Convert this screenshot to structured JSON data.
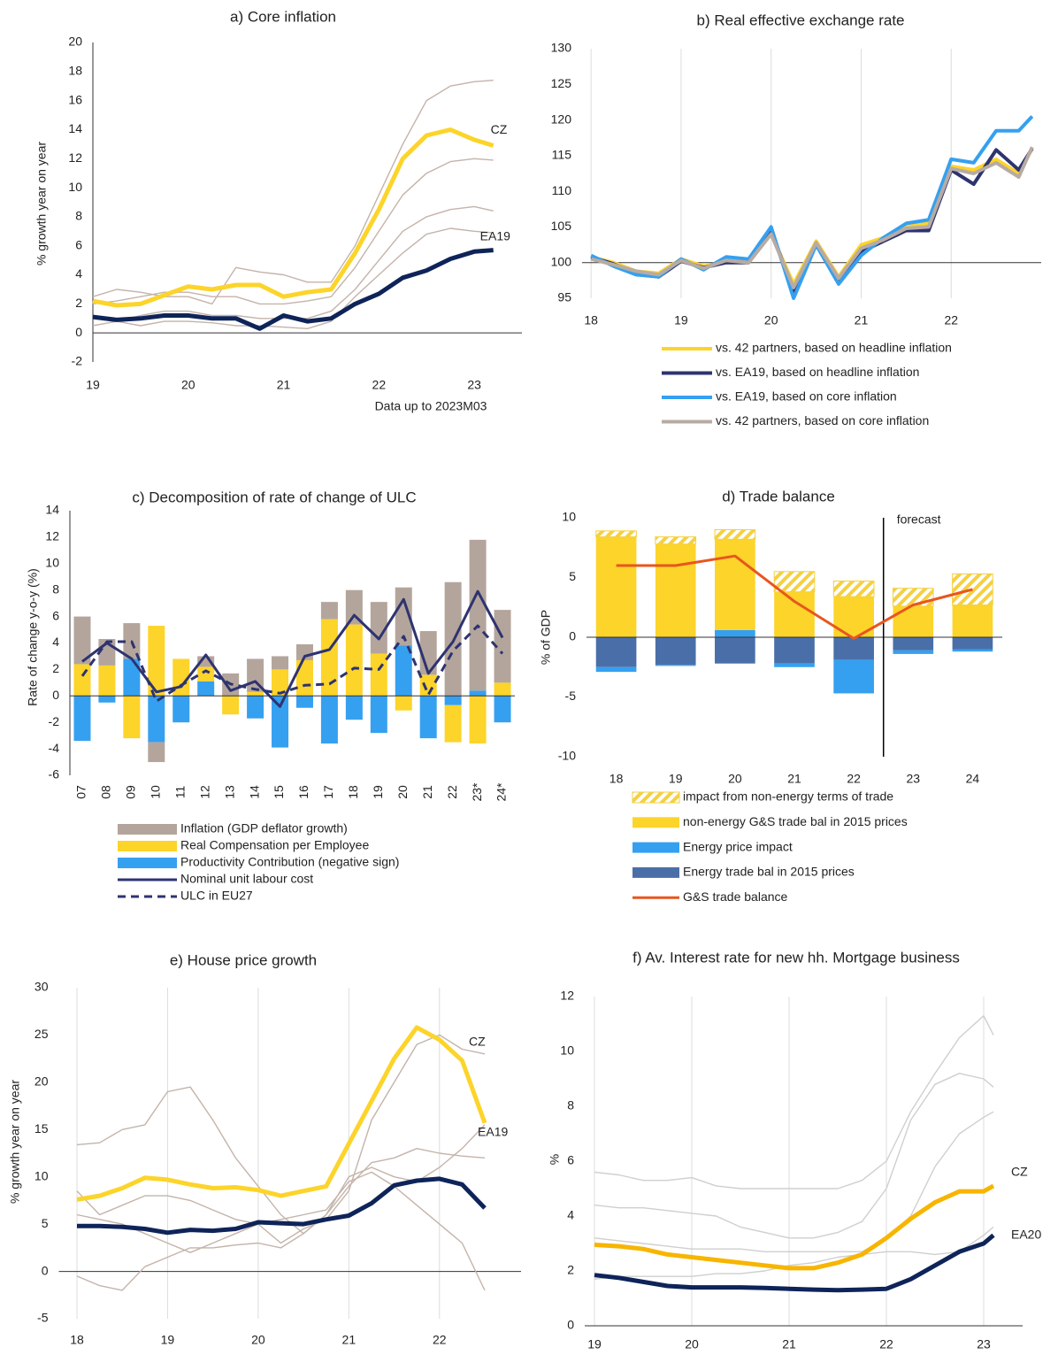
{
  "chart_data": [
    {
      "type": "line",
      "title": "a) Core inflation",
      "y_label": "% growth year on year",
      "note": "Data up to 2023M03",
      "x": [
        19,
        19.25,
        19.5,
        19.75,
        20,
        20.25,
        20.5,
        20.75,
        21,
        21.25,
        21.5,
        21.75,
        22,
        22.25,
        22.5,
        22.75,
        23,
        23.2
      ],
      "xlim": [
        19,
        23.5
      ],
      "xticks": [
        19,
        20,
        21,
        22,
        23
      ],
      "ylim": [
        -2,
        20
      ],
      "yticks": [
        -2,
        0,
        2,
        4,
        6,
        8,
        10,
        12,
        14,
        16,
        18,
        20
      ],
      "xaxis_at": 0,
      "y_axis_line": true,
      "series": [
        {
          "color": "#c4b3aa",
          "values": [
            2.5,
            3.0,
            2.8,
            2.5,
            2.5,
            2.0,
            4.5,
            4.2,
            4.0,
            3.5,
            3.5,
            6.0,
            9.5,
            13.0,
            16.0,
            17.0,
            17.3,
            17.4
          ]
        },
        {
          "color": "#c4b3aa",
          "values": [
            2.0,
            2.2,
            2.5,
            2.8,
            2.8,
            2.5,
            2.5,
            2.0,
            2.0,
            2.2,
            2.5,
            4.5,
            7.0,
            9.5,
            11.0,
            11.8,
            12.0,
            11.9
          ]
        },
        {
          "color": "#c4b3aa",
          "values": [
            1.0,
            0.8,
            1.2,
            1.5,
            1.5,
            1.2,
            1.2,
            1.0,
            1.0,
            1.0,
            1.5,
            3.0,
            5.0,
            7.0,
            8.0,
            8.5,
            8.7,
            8.4
          ]
        },
        {
          "color": "#c4b3aa",
          "values": [
            0.5,
            0.8,
            0.5,
            0.8,
            0.8,
            0.7,
            0.5,
            0.5,
            0.4,
            0.3,
            0.8,
            2.5,
            4.0,
            5.5,
            6.8,
            7.2,
            7.0,
            6.9
          ]
        },
        {
          "name": "CZ",
          "color": "#fcd42a",
          "values": [
            2.2,
            1.9,
            2.0,
            2.6,
            3.2,
            3.0,
            3.3,
            3.3,
            2.5,
            2.8,
            3.0,
            5.5,
            8.5,
            12.0,
            13.6,
            14.0,
            13.3,
            12.9
          ]
        },
        {
          "name": "EA19",
          "color": "#0e2459",
          "values": [
            1.1,
            0.9,
            1.0,
            1.2,
            1.2,
            1.0,
            1.0,
            0.3,
            1.2,
            0.8,
            1.0,
            2.0,
            2.7,
            3.8,
            4.3,
            5.1,
            5.6,
            5.7
          ]
        }
      ]
    },
    {
      "type": "line",
      "title": "b) Real effective exchange rate",
      "x": [
        18,
        18.25,
        18.5,
        18.75,
        19,
        19.25,
        19.5,
        19.75,
        20,
        20.25,
        20.5,
        20.75,
        21,
        21.25,
        21.5,
        21.75,
        22,
        22.25,
        22.5,
        22.75,
        22.9
      ],
      "xlim": [
        17.9,
        23.0
      ],
      "xticks": [
        18,
        19,
        20,
        21,
        22
      ],
      "ylim": [
        95,
        130
      ],
      "yticks": [
        95,
        100,
        105,
        110,
        115,
        120,
        125,
        130
      ],
      "xaxis_at": 100,
      "grid": "x",
      "legend": "bottom",
      "series": [
        {
          "name": "vs. 42 partners, based on headline inflation",
          "color": "#fcd42a",
          "values": [
            100.8,
            100.0,
            98.8,
            98.5,
            100.5,
            99.5,
            100.0,
            100.2,
            104.0,
            97.0,
            103.0,
            98.0,
            102.5,
            103.5,
            105.0,
            105.5,
            113.5,
            113.0,
            114.5,
            112.5,
            116.0
          ]
        },
        {
          "name": "vs. EA19, based on headline inflation",
          "color": "#2e3370",
          "values": [
            100.8,
            99.8,
            98.5,
            98.0,
            100.2,
            99.3,
            100.0,
            100.0,
            104.5,
            96.0,
            102.5,
            97.5,
            101.5,
            103.0,
            104.5,
            104.5,
            113.0,
            111.0,
            115.8,
            113.0,
            116.0
          ]
        },
        {
          "name": "vs. EA19, based on core inflation",
          "color": "#35a0f0",
          "values": [
            101.0,
            99.5,
            98.3,
            98.0,
            100.5,
            99.0,
            100.8,
            100.5,
            105.0,
            95.0,
            102.5,
            97.0,
            101.0,
            103.5,
            105.5,
            106.0,
            114.5,
            114.0,
            118.5,
            118.5,
            120.5
          ]
        },
        {
          "name": "vs. 42 partners, based on core inflation",
          "color": "#b8aba3",
          "values": [
            100.5,
            99.7,
            98.8,
            98.3,
            100.3,
            99.2,
            100.3,
            100.0,
            104.0,
            96.5,
            102.8,
            97.8,
            102.0,
            103.2,
            104.8,
            105.0,
            113.2,
            112.5,
            114.0,
            112.0,
            116.2
          ]
        }
      ]
    },
    {
      "type": "bar",
      "title": "c) Decomposition of rate of change of ULC",
      "y_label": "Rate of change y-o-y (%)",
      "categories": [
        "07",
        "08",
        "09",
        "10",
        "11",
        "12",
        "13",
        "14",
        "15",
        "16",
        "17",
        "18",
        "19",
        "20",
        "21",
        "22",
        "23*",
        "24*"
      ],
      "ylim": [
        -6,
        14
      ],
      "yticks": [
        -6,
        -4,
        -2,
        0,
        2,
        4,
        6,
        8,
        10,
        12,
        14
      ],
      "xaxis_at": 0,
      "y_axis_line": true,
      "legend": "bottom",
      "stacked": true,
      "series": [
        {
          "name": "Inflation (GDP deflator growth)",
          "color": "#b4a59c",
          "values": [
            3.6,
            2.0,
            2.7,
            -1.5,
            0,
            0.8,
            1.7,
            2.5,
            1.0,
            1.2,
            1.3,
            2.6,
            3.9,
            4.4,
            3.3,
            8.6,
            11.4,
            5.5
          ]
        },
        {
          "name": "Real Compensation per Employee",
          "color": "#fcd42a",
          "values": [
            2.4,
            2.3,
            -3.2,
            5.3,
            2.8,
            1.1,
            -1.4,
            0.3,
            2.0,
            2.7,
            5.8,
            5.4,
            3.2,
            -1.1,
            1.6,
            -2.8,
            -3.6,
            1.0
          ]
        },
        {
          "name": "Productivity Contribution (negative sign)",
          "color": "#35a0f0",
          "values": [
            -3.4,
            -0.5,
            2.8,
            -3.5,
            -2.0,
            1.1,
            0,
            -1.7,
            -3.9,
            -0.9,
            -3.6,
            -1.8,
            -2.8,
            3.8,
            -3.2,
            -0.7,
            0.4,
            -2.0
          ]
        },
        {
          "name": "Nominal unit labour cost",
          "color": "#2e3370",
          "type": "line",
          "values": [
            2.6,
            4.0,
            2.8,
            0.3,
            0.7,
            3.1,
            0.4,
            1.1,
            -0.8,
            3.0,
            3.5,
            6.1,
            4.3,
            7.3,
            1.7,
            4.1,
            7.9,
            4.4
          ]
        },
        {
          "name": "ULC in EU27",
          "color": "#2e3370",
          "type": "line",
          "dash": true,
          "values": [
            1.5,
            4.1,
            4.1,
            -0.4,
            0.8,
            1.9,
            0.9,
            0.5,
            0.2,
            0.8,
            0.9,
            2.1,
            2.0,
            4.5,
            0.1,
            3.4,
            5.3,
            3.2
          ]
        }
      ]
    },
    {
      "type": "bar",
      "title": "d) Trade balance",
      "y_label": "% of GDP",
      "annotation": "forecast",
      "categories": [
        "18",
        "19",
        "20",
        "21",
        "22",
        "23",
        "24"
      ],
      "ylim": [
        -10,
        10
      ],
      "yticks": [
        -10,
        -5,
        0,
        5,
        10
      ],
      "xaxis_at": 0,
      "legend": "bottom",
      "stacked": true,
      "series": [
        {
          "name": "impact from non-energy terms of trade",
          "color": "#f5d040",
          "pattern": "hatch",
          "values": [
            0.5,
            0.6,
            0.8,
            1.7,
            1.3,
            1.5,
            2.6
          ]
        },
        {
          "name": "non-energy G&S trade bal in 2015 prices",
          "color": "#fcd42a",
          "values": [
            8.4,
            7.8,
            7.6,
            3.8,
            3.4,
            2.6,
            2.7
          ]
        },
        {
          "name": "Energy price impact",
          "color": "#35a0f0",
          "values": [
            -0.4,
            -0.1,
            0.6,
            -0.3,
            -2.8,
            -0.3,
            -0.2
          ]
        },
        {
          "name": "Energy trade bal in 2015 prices",
          "color": "#4a6fa8",
          "values": [
            -2.5,
            -2.3,
            -2.2,
            -2.2,
            -1.9,
            -1.1,
            -1.0
          ]
        },
        {
          "name": "G&S trade balance",
          "color": "#e8561e",
          "type": "line",
          "values": [
            6.0,
            6.0,
            6.8,
            3.0,
            -0.1,
            2.7,
            4.0
          ]
        }
      ]
    },
    {
      "type": "line",
      "title": "e) House price growth",
      "y_label": "% growth year on year",
      "x": [
        18,
        18.25,
        18.5,
        18.75,
        19,
        19.25,
        19.5,
        19.75,
        20,
        20.25,
        20.5,
        20.75,
        21,
        21.25,
        21.5,
        21.75,
        22,
        22.25,
        22.5
      ],
      "xlim": [
        17.8,
        22.9
      ],
      "xticks": [
        18,
        19,
        20,
        21,
        22
      ],
      "ylim": [
        -5,
        30
      ],
      "yticks": [
        -5,
        0,
        5,
        10,
        15,
        20,
        25,
        30
      ],
      "xaxis_at": 0,
      "grid": "x",
      "series": [
        {
          "color": "#c4b3aa",
          "values": [
            13.4,
            13.6,
            15.0,
            15.5,
            19.0,
            19.5,
            16.0,
            12.0,
            9.0,
            6.0,
            4.0,
            6.0,
            10.0,
            11.0,
            10.0,
            9.5,
            11.0,
            13.0,
            15.5
          ]
        },
        {
          "color": "#c4b3aa",
          "values": [
            8.5,
            6.0,
            7.0,
            8.0,
            8.0,
            7.5,
            6.5,
            5.5,
            5.0,
            3.0,
            4.5,
            5.5,
            8.5,
            16.0,
            20.0,
            24.0,
            25.0,
            23.5,
            23.0
          ]
        },
        {
          "color": "#c4b3aa",
          "values": [
            6.0,
            5.5,
            5.0,
            4.0,
            3.0,
            2.0,
            3.0,
            4.0,
            5.0,
            5.5,
            6.0,
            6.5,
            9.5,
            10.5,
            9.0,
            7.0,
            5.0,
            3.0,
            -2.0
          ]
        },
        {
          "color": "#c4b3aa",
          "values": [
            -0.5,
            -1.5,
            -2.0,
            0.5,
            1.5,
            2.5,
            2.5,
            2.8,
            3.0,
            2.5,
            4.0,
            6.0,
            9.0,
            11.5,
            12.0,
            13.0,
            12.5,
            12.2,
            12.0
          ]
        },
        {
          "name": "CZ",
          "color": "#fcd42a",
          "values": [
            7.6,
            8.0,
            8.8,
            9.9,
            9.7,
            9.2,
            8.8,
            8.9,
            8.6,
            8.0,
            8.5,
            9.0,
            13.5,
            18.0,
            22.5,
            25.8,
            24.5,
            22.3,
            15.7
          ]
        },
        {
          "name": "EA19",
          "color": "#0e2459",
          "values": [
            4.8,
            4.8,
            4.7,
            4.5,
            4.1,
            4.4,
            4.3,
            4.5,
            5.2,
            5.1,
            5.0,
            5.5,
            5.9,
            7.2,
            9.1,
            9.6,
            9.8,
            9.2,
            6.7
          ]
        }
      ]
    },
    {
      "type": "line",
      "title": "f) Av. Interest rate for new hh. Mortgage business",
      "y_label": "%",
      "x": [
        19,
        19.25,
        19.5,
        19.75,
        20,
        20.25,
        20.5,
        20.75,
        21,
        21.25,
        21.5,
        21.75,
        22,
        22.25,
        22.5,
        22.75,
        23,
        23.1
      ],
      "xlim": [
        18.9,
        23.4
      ],
      "xticks": [
        19,
        20,
        21,
        22,
        23
      ],
      "ylim": [
        0,
        12
      ],
      "yticks": [
        0,
        2,
        4,
        6,
        8,
        10,
        12
      ],
      "xaxis_at": 0,
      "grid": "x",
      "series": [
        {
          "color": "#cfcfcf",
          "values": [
            5.6,
            5.5,
            5.3,
            5.3,
            5.4,
            5.1,
            5.0,
            5.0,
            5.0,
            5.0,
            5.0,
            5.3,
            6.0,
            7.8,
            9.2,
            10.5,
            11.3,
            10.6
          ]
        },
        {
          "color": "#cfcfcf",
          "values": [
            4.4,
            4.3,
            4.3,
            4.2,
            4.1,
            4.0,
            3.6,
            3.4,
            3.2,
            3.2,
            3.4,
            3.8,
            5.0,
            7.5,
            8.8,
            9.2,
            9.0,
            8.7
          ]
        },
        {
          "color": "#cfcfcf",
          "values": [
            3.2,
            3.1,
            3.0,
            2.9,
            2.8,
            2.8,
            2.8,
            2.7,
            2.7,
            2.7,
            2.7,
            2.7,
            3.2,
            4.0,
            5.8,
            7.0,
            7.6,
            7.8
          ]
        },
        {
          "color": "#cfcfcf",
          "values": [
            1.7,
            1.8,
            1.8,
            1.8,
            1.8,
            1.9,
            1.9,
            2.0,
            2.2,
            2.3,
            2.5,
            2.6,
            2.7,
            2.7,
            2.6,
            2.7,
            3.3,
            3.6
          ]
        },
        {
          "name": "CZ",
          "color": "#f7b500",
          "values": [
            2.95,
            2.9,
            2.8,
            2.6,
            2.5,
            2.4,
            2.3,
            2.2,
            2.1,
            2.1,
            2.3,
            2.6,
            3.2,
            3.9,
            4.5,
            4.9,
            4.9,
            5.1
          ]
        },
        {
          "name": "EA20",
          "color": "#0e2459",
          "values": [
            1.85,
            1.75,
            1.6,
            1.45,
            1.4,
            1.4,
            1.4,
            1.38,
            1.35,
            1.32,
            1.3,
            1.32,
            1.35,
            1.7,
            2.2,
            2.7,
            3.0,
            3.3
          ]
        }
      ]
    }
  ]
}
